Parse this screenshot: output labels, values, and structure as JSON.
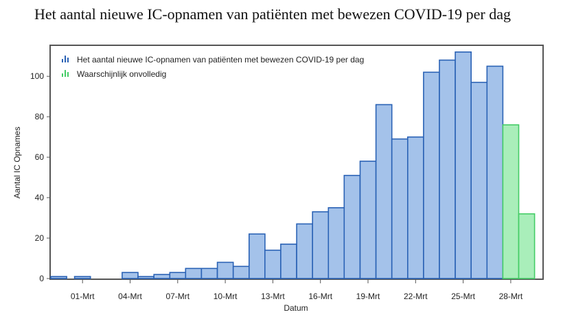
{
  "title": "Het aantal nieuwe IC-opnamen van patiënten met bewezen COVID-19 per dag",
  "chart_data": {
    "type": "bar",
    "xlabel": "Datum",
    "ylabel": "Aantal IC Opnames",
    "ylim": [
      0,
      115
    ],
    "yticks": [
      0,
      20,
      40,
      60,
      80,
      100
    ],
    "xtick_labels": [
      "01-Mrt",
      "04-Mrt",
      "07-Mrt",
      "10-Mrt",
      "13-Mrt",
      "16-Mrt",
      "19-Mrt",
      "22-Mrt",
      "25-Mrt",
      "28-Mrt"
    ],
    "xtick_days": [
      1,
      4,
      7,
      10,
      13,
      16,
      19,
      22,
      25,
      28
    ],
    "x_range": [
      -1,
      29.5
    ],
    "grid": false,
    "legend_position": "top-left",
    "series": [
      {
        "name": "Het aantal nieuwe IC-opnamen van patiënten met bewezen COVID-19 per dag",
        "color": "#a4c2ea",
        "stroke": "#2a62b5",
        "days": [
          -0.5,
          0.5,
          1,
          2,
          3,
          4,
          5,
          6,
          7,
          8,
          9,
          10,
          11,
          12,
          13,
          14,
          15,
          16,
          17,
          18,
          19,
          20,
          21,
          22,
          23,
          24,
          25,
          26,
          27
        ],
        "values": [
          1,
          0,
          1,
          0,
          0,
          3,
          1,
          2,
          3,
          5,
          5,
          8,
          6,
          22,
          14,
          17,
          27,
          33,
          35,
          51,
          58,
          86,
          69,
          70,
          102,
          108,
          112,
          97,
          105
        ]
      },
      {
        "name": "Waarschijnlijk onvolledig",
        "color": "#a9eeba",
        "stroke": "#44cc66",
        "days": [
          28,
          29
        ],
        "values": [
          76,
          32
        ]
      }
    ]
  }
}
